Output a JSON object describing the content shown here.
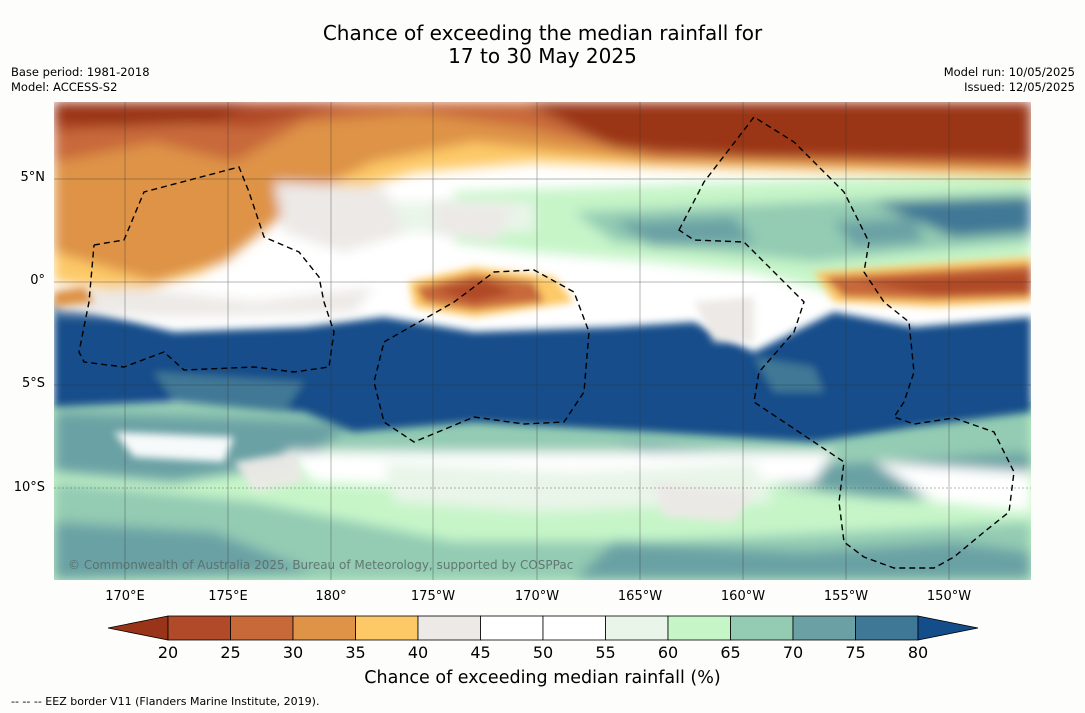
{
  "title_line1": "Chance of exceeding the median rainfall for",
  "title_line2": "17 to 30 May 2025",
  "meta_left": [
    "Base period: 1981-2018",
    "Model: ACCESS-S2"
  ],
  "meta_right": [
    "Model run: 10/05/2025",
    "Issued: 12/05/2025"
  ],
  "lat_labels": [
    "5°N",
    "0°",
    "5°S",
    "10°S"
  ],
  "lon_labels": [
    "170°E",
    "175°E",
    "180°",
    "175°W",
    "170°W",
    "165°W",
    "160°W",
    "155°W",
    "150°W"
  ],
  "copyright": "© Commonwealth of Australia 2025, Bureau of Meteorology, supported by COSPPac",
  "colorbar": {
    "label": "Chance of exceeding median rainfall (%)",
    "ticks": [
      "20",
      "25",
      "30",
      "35",
      "40",
      "45",
      "50",
      "55",
      "60",
      "65",
      "70",
      "75",
      "80"
    ],
    "colors": [
      "#9a3419",
      "#b04a28",
      "#c8693a",
      "#de9346",
      "#fdc967",
      "#ece9e6",
      "#ffffff",
      "#ffffff",
      "#e9f5e9",
      "#c6f5c8",
      "#93cbb3",
      "#6ba1a4",
      "#3f7896",
      "#134e8a"
    ]
  },
  "footnote": "-- -- -- EEZ border V11 (Flanders Marine Institute, 2019)."
}
